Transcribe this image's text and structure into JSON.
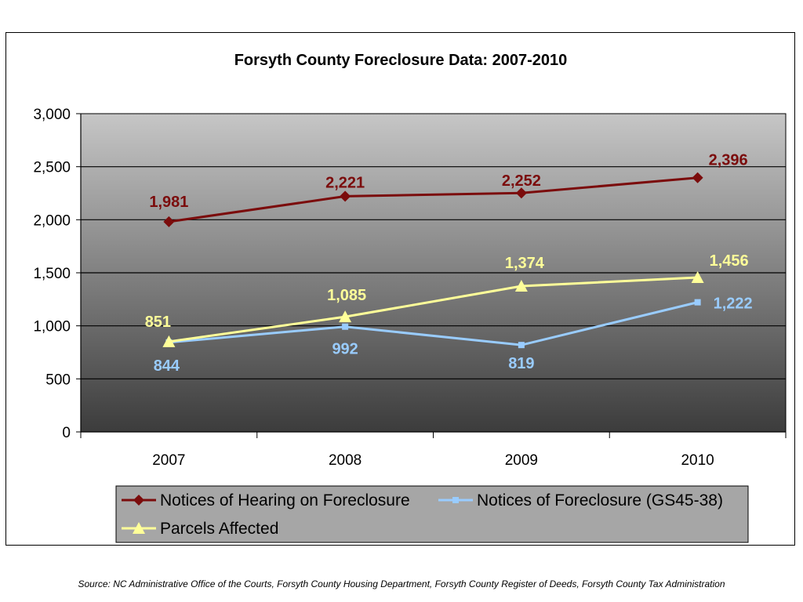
{
  "chart_data": {
    "type": "line",
    "title": "Forsyth County Foreclosure Data: 2007-2010",
    "categories": [
      "2007",
      "2008",
      "2009",
      "2010"
    ],
    "ylim": [
      0,
      3000
    ],
    "yticks": [
      0,
      500,
      1000,
      1500,
      2000,
      2500,
      3000
    ],
    "ytick_labels": [
      "0",
      "500",
      "1,000",
      "1,500",
      "2,000",
      "2,500",
      "3,000"
    ],
    "grid": true,
    "legend_position": "bottom",
    "series": [
      {
        "name": "Notices of Hearing on Foreclosure",
        "values": [
          1981,
          2221,
          2252,
          2396
        ],
        "labels": [
          "1,981",
          "2,221",
          "2,252",
          "2,396"
        ],
        "color": "#7b0c0c",
        "label_color": "#7b0c0c",
        "marker": "diamond"
      },
      {
        "name": "Notices of Foreclosure (GS45-38)",
        "values": [
          844,
          992,
          819,
          1222
        ],
        "labels": [
          "844",
          "992",
          "819",
          "1,222"
        ],
        "color": "#99ccff",
        "label_color": "#99ccff",
        "marker": "square"
      },
      {
        "name": "Parcels Affected",
        "values": [
          851,
          1085,
          1374,
          1456
        ],
        "labels": [
          "851",
          "1,085",
          "1,374",
          "1,456"
        ],
        "color": "#ffff99",
        "label_color": "#ffff99",
        "marker": "triangle"
      }
    ]
  },
  "source_note": "Source: NC Administrative Office of the Courts, Forsyth County Housing Department, Forsyth County Register of Deeds, Forsyth County Tax Administration"
}
